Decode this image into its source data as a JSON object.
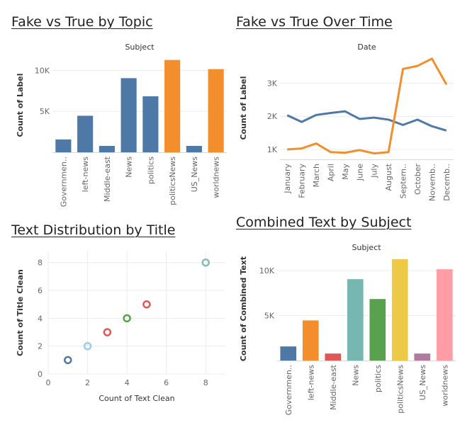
{
  "dashboard": {
    "topic_title": "Fake vs True by Topic",
    "time_title": "Fake vs True Over Time",
    "scatter_title": "Text Distribution by Title",
    "combined_title": "Combined Text by Subject"
  },
  "colors": {
    "blue": "#4e79a7",
    "orange": "#f28e2b",
    "grid": "#ececec",
    "axis_text": "#666666"
  },
  "chart_data": [
    {
      "id": "topic",
      "type": "bar",
      "title": "Fake vs True by Topic",
      "header": "Subject",
      "ylabel": "Count of Label",
      "ylim": [
        0,
        11500
      ],
      "yticks": [
        {
          "v": 5000,
          "label": "5K"
        },
        {
          "v": 10000,
          "label": "10K"
        }
      ],
      "categories": [
        "Governmen..",
        "left-news",
        "Middle-east",
        "News",
        "politics",
        "politicsNews",
        "US_News",
        "worldnews"
      ],
      "values": [
        1570,
        4460,
        780,
        9050,
        6840,
        11270,
        780,
        10150
      ],
      "colors": [
        "#4e79a7",
        "#4e79a7",
        "#4e79a7",
        "#4e79a7",
        "#4e79a7",
        "#f28e2b",
        "#4e79a7",
        "#f28e2b"
      ]
    },
    {
      "id": "time",
      "type": "line",
      "title": "Fake vs True Over Time",
      "header": "Date",
      "ylabel": "Count of Label",
      "ylim": [
        700,
        3800
      ],
      "yticks": [
        {
          "v": 1000,
          "label": "1K"
        },
        {
          "v": 2000,
          "label": "2K"
        },
        {
          "v": 3000,
          "label": "3K"
        }
      ],
      "categories": [
        "January",
        "February",
        "March",
        "April",
        "May",
        "June",
        "July",
        "August",
        "Septem..",
        "October",
        "Novemb..",
        "Decemb.."
      ],
      "series": [
        {
          "color": "#4e79a7",
          "values": [
            2030,
            1830,
            2040,
            2100,
            2150,
            1920,
            1960,
            1900,
            1740,
            1900,
            1700,
            1570
          ]
        },
        {
          "color": "#f28e2b",
          "values": [
            1000,
            1030,
            1180,
            920,
            900,
            980,
            880,
            920,
            3430,
            3520,
            3740,
            2960
          ]
        }
      ]
    },
    {
      "id": "scatter",
      "type": "scatter",
      "title": "Text Distribution by Title",
      "xlabel": "Count of Text Clean",
      "ylabel": "Count of Title Clean",
      "xlim": [
        0,
        9
      ],
      "ylim": [
        0,
        8.8
      ],
      "xticks": [
        0,
        2,
        4,
        6,
        8
      ],
      "yticks": [
        0,
        2,
        4,
        6,
        8
      ],
      "points": [
        {
          "x": 1,
          "y": 1,
          "color": "#4e79a7"
        },
        {
          "x": 2,
          "y": 2,
          "color": "#a0cbe8"
        },
        {
          "x": 3,
          "y": 3,
          "color": "#e15759"
        },
        {
          "x": 4,
          "y": 4,
          "color": "#59a14f"
        },
        {
          "x": 5,
          "y": 5,
          "color": "#e15759"
        },
        {
          "x": 8,
          "y": 8,
          "color": "#86bcb6"
        }
      ]
    },
    {
      "id": "combined",
      "type": "bar",
      "title": "Combined Text by Subject",
      "header": "Subject",
      "ylabel": "Count of Combined Text",
      "ylim": [
        0,
        11500
      ],
      "yticks": [
        {
          "v": 5000,
          "label": "5K"
        },
        {
          "v": 10000,
          "label": "10K"
        }
      ],
      "categories": [
        "Governmen..",
        "left-news",
        "Middle-east",
        "News",
        "politics",
        "politicsNews",
        "US_News",
        "worldnews"
      ],
      "values": [
        1570,
        4460,
        780,
        9050,
        6840,
        11270,
        780,
        10150
      ],
      "colors": [
        "#4e79a7",
        "#f28e2b",
        "#e15759",
        "#76b7b2",
        "#59a14f",
        "#edc948",
        "#b07aa1",
        "#ff9da7"
      ]
    }
  ]
}
